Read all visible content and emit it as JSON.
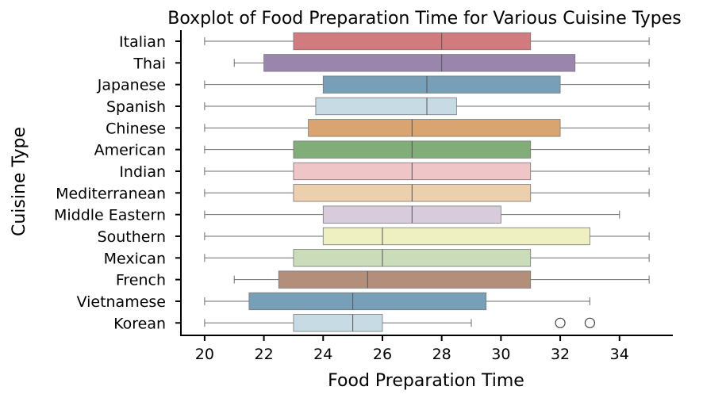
{
  "chart_data": {
    "type": "boxplot",
    "title": "Boxplot of Food Preparation Time for Various Cuisine Types",
    "xlabel": "Food Preparation Time",
    "ylabel": "Cuisine Type",
    "xlim": [
      19.2,
      35.8
    ],
    "xticks": [
      20,
      22,
      24,
      26,
      28,
      30,
      32,
      34
    ],
    "grid": false,
    "legend": "none",
    "categories": [
      "Italian",
      "Thai",
      "Japanese",
      "Spanish",
      "Chinese",
      "American",
      "Indian",
      "Mediterranean",
      "Middle Eastern",
      "Southern",
      "Mexican",
      "French",
      "Vietnamese",
      "Korean"
    ],
    "boxes": [
      {
        "name": "Italian",
        "whislo": 20,
        "q1": 23,
        "median": 28,
        "q3": 31,
        "whishi": 35,
        "fliers": [],
        "color": "#d27b7e"
      },
      {
        "name": "Thai",
        "whislo": 21,
        "q1": 22,
        "median": 28,
        "q3": 32.5,
        "whishi": 35,
        "fliers": [],
        "color": "#9a86ac"
      },
      {
        "name": "Japanese",
        "whislo": 20,
        "q1": 24,
        "median": 27.5,
        "q3": 32,
        "whishi": 35,
        "fliers": [],
        "color": "#789fb8"
      },
      {
        "name": "Spanish",
        "whislo": 20,
        "q1": 23.75,
        "median": 27.5,
        "q3": 28.5,
        "whishi": 35,
        "fliers": [],
        "color": "#c7dbe5"
      },
      {
        "name": "Chinese",
        "whislo": 20,
        "q1": 23.5,
        "median": 27,
        "q3": 32,
        "whishi": 35,
        "fliers": [],
        "color": "#daa471"
      },
      {
        "name": "American",
        "whislo": 20,
        "q1": 23,
        "median": 27,
        "q3": 31,
        "whishi": 35,
        "fliers": [],
        "color": "#81ae78"
      },
      {
        "name": "Indian",
        "whislo": 20,
        "q1": 23,
        "median": 27,
        "q3": 31,
        "whishi": 35,
        "fliers": [],
        "color": "#efc5c8"
      },
      {
        "name": "Mediterranean",
        "whislo": 20,
        "q1": 23,
        "median": 27,
        "q3": 31,
        "whishi": 35,
        "fliers": [],
        "color": "#eccfac"
      },
      {
        "name": "Middle Eastern",
        "whislo": 20,
        "q1": 24,
        "median": 27,
        "q3": 30,
        "whishi": 34,
        "fliers": [],
        "color": "#d7cbdc"
      },
      {
        "name": "Southern",
        "whislo": 20,
        "q1": 24,
        "median": 26,
        "q3": 33,
        "whishi": 35,
        "fliers": [],
        "color": "#eff0c1"
      },
      {
        "name": "Mexican",
        "whislo": 20,
        "q1": 23,
        "median": 26,
        "q3": 31,
        "whishi": 35,
        "fliers": [],
        "color": "#cadcb8"
      },
      {
        "name": "French",
        "whislo": 21,
        "q1": 22.5,
        "median": 25.5,
        "q3": 31,
        "whishi": 35,
        "fliers": [],
        "color": "#b38e7b"
      },
      {
        "name": "Vietnamese",
        "whislo": 20,
        "q1": 21.5,
        "median": 25,
        "q3": 29.5,
        "whishi": 33,
        "fliers": [],
        "color": "#789fb8"
      },
      {
        "name": "Korean",
        "whislo": 20,
        "q1": 23,
        "median": 25,
        "q3": 26,
        "whishi": 29,
        "fliers": [
          32,
          33
        ],
        "color": "#c7dbe5"
      }
    ]
  }
}
